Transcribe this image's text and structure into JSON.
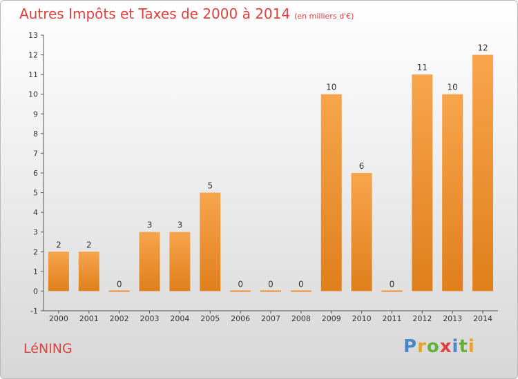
{
  "title": "Autres Impôts et Taxes de 2000 à 2014",
  "subtitle": "(en milliers d'€)",
  "commune": "LéNING",
  "logo": {
    "letters": [
      "P",
      "r",
      "o",
      "x",
      "i",
      "t",
      "i"
    ]
  },
  "colors": {
    "bar_top": "#f7a54c",
    "bar_bottom": "#e07f1c",
    "title": "#e0413f",
    "logo": [
      "#4a86c6",
      "#e8a12a",
      "#63b33a",
      "#e0413f",
      "#4a86c6",
      "#63b33a",
      "#e8a12a"
    ]
  },
  "chart_data": {
    "type": "bar",
    "categories": [
      "2000",
      "2001",
      "2002",
      "2003",
      "2004",
      "2005",
      "2006",
      "2007",
      "2008",
      "2009",
      "2010",
      "2011",
      "2012",
      "2013",
      "2014"
    ],
    "values": [
      2,
      2,
      0,
      3,
      3,
      5,
      0,
      0,
      0,
      10,
      6,
      0,
      11,
      10,
      12
    ],
    "ylim": [
      -1,
      13
    ],
    "yticks": [
      "-1",
      "0",
      "1",
      "2",
      "3",
      "4",
      "5",
      "6",
      "7",
      "8",
      "9",
      "10",
      "11",
      "12",
      "13"
    ],
    "grid": false
  }
}
